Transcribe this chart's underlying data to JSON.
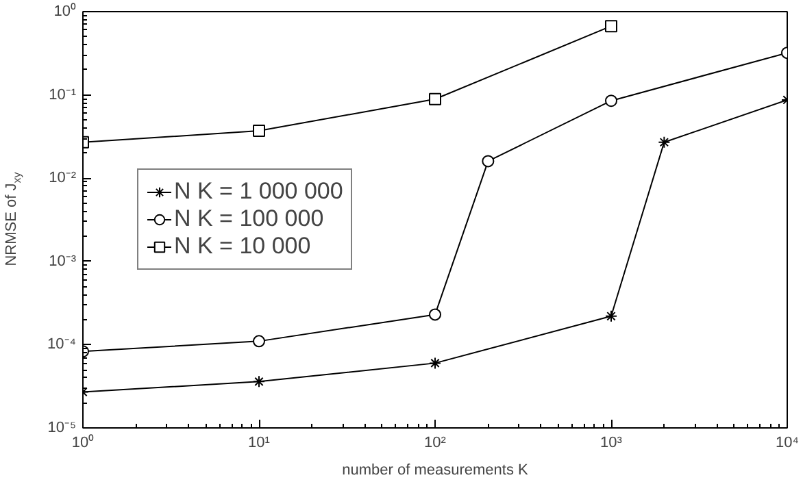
{
  "chart_data": {
    "type": "line",
    "xlabel": "number of measurements K",
    "ylabel": "NRMSE of J$_{xy}$",
    "log": "xy",
    "grid": false,
    "legend": "left",
    "line_style": "solid",
    "xlim": [
      1,
      10000
    ],
    "ylim": [
      1e-05,
      1
    ],
    "xticks": [
      {
        "value": 1,
        "label": "10⁰"
      },
      {
        "value": 10,
        "label": "10¹"
      },
      {
        "value": 100,
        "label": "10²"
      },
      {
        "value": 1000,
        "label": "10³"
      },
      {
        "value": 10000,
        "label": "10⁴"
      }
    ],
    "yticks": [
      {
        "value": 1e-05,
        "label": "10⁻⁵"
      },
      {
        "value": 0.0001,
        "label": "10⁻⁴"
      },
      {
        "value": 0.001,
        "label": "10⁻³"
      },
      {
        "value": 0.01,
        "label": "10⁻²"
      },
      {
        "value": 0.1,
        "label": "10⁻¹"
      },
      {
        "value": 1,
        "label": "10⁰"
      }
    ],
    "series": [
      {
        "name": "N K = 1 000 000",
        "color": "#000000",
        "marker": "cross",
        "x": [
          1,
          10,
          100,
          1000,
          2000,
          10000
        ],
        "values": [
          2.7e-05,
          3.6e-05,
          6e-05,
          0.00022,
          0.027,
          0.087
        ]
      },
      {
        "name": "N K = 100 000",
        "color": "#000000",
        "marker": "circle",
        "x": [
          1,
          10,
          100,
          200,
          1000,
          10000
        ],
        "values": [
          8.3e-05,
          0.00011,
          0.00023,
          0.016,
          0.085,
          0.32
        ]
      },
      {
        "name": "N K = 10 000",
        "color": "#000000",
        "marker": "square",
        "x": [
          1,
          10,
          100,
          1000
        ],
        "values": [
          0.027,
          0.037,
          0.089,
          0.67
        ]
      }
    ]
  }
}
